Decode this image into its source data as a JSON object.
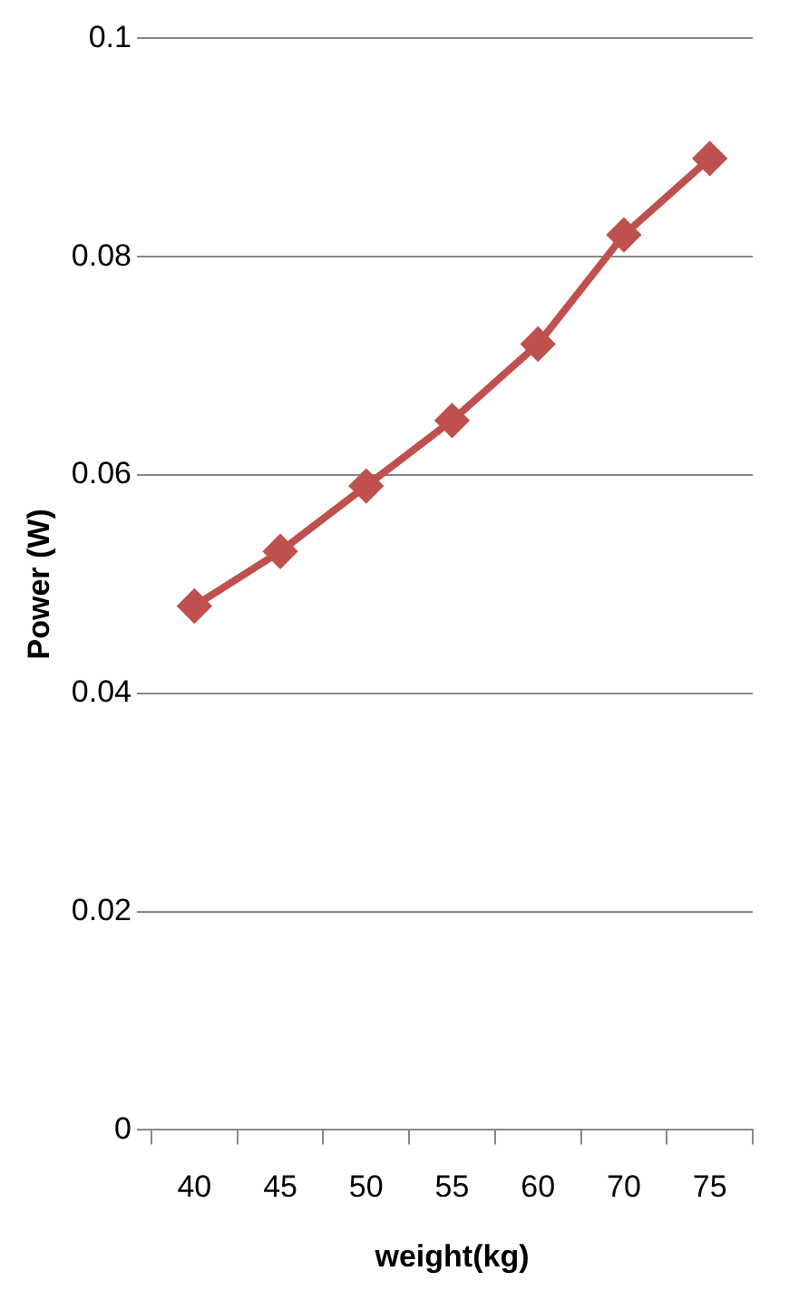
{
  "chart_data": {
    "type": "line",
    "xlabel": "weight(kg)",
    "ylabel": "Power (W)",
    "categories": [
      "40",
      "45",
      "50",
      "55",
      "60",
      "70",
      "75"
    ],
    "series": [
      {
        "color": "#c0504d",
        "values": [
          0.048,
          0.053,
          0.059,
          0.065,
          0.072,
          0.082,
          0.089
        ]
      }
    ],
    "ylim": [
      0,
      0.1
    ],
    "yticks": [
      0,
      0.02,
      0.04,
      0.06,
      0.08,
      0.1
    ],
    "grid": "y",
    "marker": "diamond",
    "line_style": "solid",
    "legend": false
  }
}
